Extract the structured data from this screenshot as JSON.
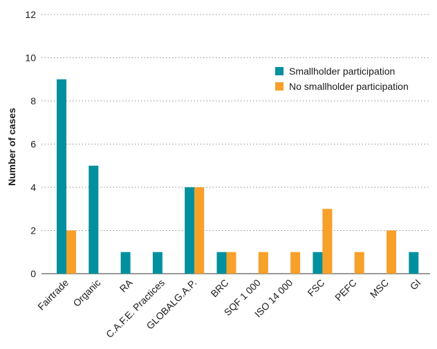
{
  "chart_data": {
    "type": "bar",
    "ylabel": "Number of cases",
    "xlabel": "",
    "title": "",
    "ylim": [
      0,
      12
    ],
    "yticks": [
      0,
      2,
      4,
      6,
      8,
      10,
      12
    ],
    "grid": true,
    "legend_position": "top-right",
    "categories": [
      "Fairtrade",
      "Organic",
      "RA",
      "C.A.F.E. Practices",
      "GLOBALG.A.P.",
      "BRC",
      "SQF 1 000",
      "ISO 14 000",
      "FSC",
      "PEFC",
      "MSC",
      "GI"
    ],
    "series": [
      {
        "name": "Smallholder participation",
        "color": "#00909e",
        "values": [
          9,
          5,
          1,
          1,
          4,
          1,
          0,
          0,
          1,
          0,
          0,
          1
        ]
      },
      {
        "name": "No smallholder participation",
        "color": "#f7a02a",
        "values": [
          2,
          0,
          0,
          0,
          4,
          1,
          1,
          1,
          3,
          1,
          2,
          0
        ]
      }
    ]
  }
}
